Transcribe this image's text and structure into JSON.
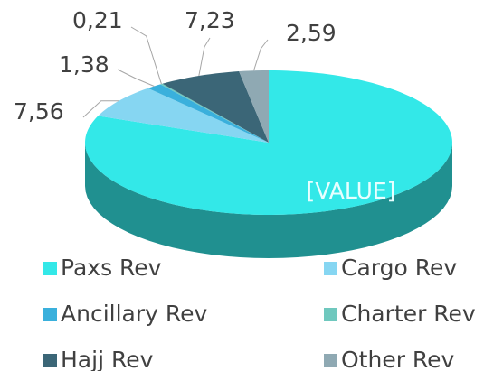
{
  "chart_data": {
    "type": "pie3d",
    "categories": [
      "Paxs Rev",
      "Cargo Rev",
      "Ancillary Rev",
      "Charter Rev",
      "Hajj Rev",
      "Other Rev"
    ],
    "values": [
      81,
      7.56,
      1.38,
      0.21,
      7.23,
      2.59
    ],
    "value_labels": [
      "[VALUE]",
      "7,56",
      "1,38",
      "0,21",
      "7,23",
      "2,59"
    ],
    "colors": [
      "#33e8e8",
      "#86d6f2",
      "#3ab0dc",
      "#6fc8be",
      "#3b6677",
      "#8fa9b3"
    ],
    "legend": "bottom"
  }
}
